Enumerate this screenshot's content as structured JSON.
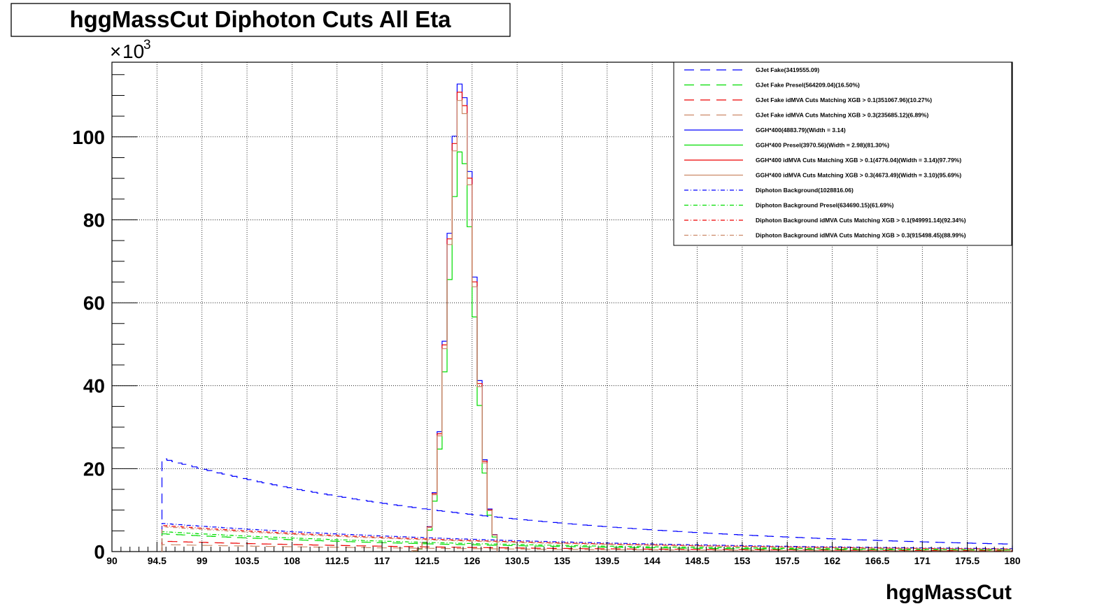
{
  "title": "hggMassCut Diphoton Cuts All Eta",
  "colors": {
    "blue": "#0000ff",
    "green": "#00dd00",
    "red": "#ee0000",
    "tan": "#cc8866",
    "grid": "#000000"
  },
  "chart_data": {
    "type": "line",
    "title": "hggMassCut Diphoton Cuts All Eta",
    "xlabel": "hggMassCut",
    "ylabel": "",
    "y_multiplier": "10",
    "y_multiplier_exp": "3",
    "xlim": [
      90,
      180
    ],
    "ylim": [
      0,
      118
    ],
    "grid": true,
    "legend_position": "top-right",
    "x_ticks": [
      "90",
      "94.5",
      "99",
      "103.5",
      "108",
      "112.5",
      "117",
      "121.5",
      "126",
      "130.5",
      "135",
      "139.5",
      "144",
      "148.5",
      "153",
      "157.5",
      "162",
      "166.5",
      "171",
      "175.5",
      "180"
    ],
    "y_ticks": [
      "0",
      "20",
      "40",
      "60",
      "80",
      "100"
    ],
    "series": [
      {
        "name": "GJet Fake(3419555.09)",
        "color": "blue",
        "dash": "long",
        "kind": "falling",
        "x_range": [
          95,
          180
        ],
        "y_start": 22.5,
        "y_end": 1.8
      },
      {
        "name": "GJet Fake Presel(564209.04)(16.50%)",
        "color": "green",
        "dash": "long",
        "kind": "falling",
        "x_range": [
          95,
          180
        ],
        "y_start": 4.3,
        "y_end": 0.3
      },
      {
        "name": "GJet Fake idMVA Cuts Matching XGB > 0.1(351067.96)(10.27%)",
        "color": "red",
        "dash": "long",
        "kind": "falling",
        "x_range": [
          95,
          180
        ],
        "y_start": 2.5,
        "y_end": 0.2
      },
      {
        "name": "GJet Fake idMVA Cuts Matching XGB > 0.3(235685.12)(6.89%)",
        "color": "tan",
        "dash": "long",
        "kind": "falling",
        "x_range": [
          95,
          180
        ],
        "y_start": 1.7,
        "y_end": 0.15
      },
      {
        "name": "GGH*400(4883.79)(Width = 3.14)",
        "color": "blue",
        "dash": "solid",
        "kind": "peak",
        "x_range": [
          120,
          128.5
        ],
        "peak_x": 124.9,
        "peak_y": 113.5
      },
      {
        "name": "GGH*400 Presel(3970.56)(Width = 2.98)(81.30%)",
        "color": "green",
        "dash": "solid",
        "kind": "peak",
        "x_range": [
          120,
          128.5
        ],
        "peak_x": 124.9,
        "peak_y": 97.0
      },
      {
        "name": "GGH*400 idMVA Cuts Matching XGB > 0.1(4776.04)(Width = 3.14)(97.79%)",
        "color": "red",
        "dash": "solid",
        "kind": "peak",
        "x_range": [
          120,
          128.5
        ],
        "peak_x": 124.9,
        "peak_y": 111.5
      },
      {
        "name": "GGH*400 idMVA Cuts Matching XGB > 0.3(4673.49)(Width = 3.10)(95.69%)",
        "color": "tan",
        "dash": "solid",
        "kind": "peak",
        "x_range": [
          120,
          128.5
        ],
        "peak_x": 124.9,
        "peak_y": 109.5
      },
      {
        "name": "Diphoton Background(1028816.06)",
        "color": "blue",
        "dash": "dashdot",
        "kind": "falling",
        "x_range": [
          95,
          180
        ],
        "y_start": 6.8,
        "y_end": 0.7
      },
      {
        "name": "Diphoton Background Presel(634690.15)(61.69%)",
        "color": "green",
        "dash": "dashdot",
        "kind": "falling",
        "x_range": [
          95,
          180
        ],
        "y_start": 4.8,
        "y_end": 0.4
      },
      {
        "name": "Diphoton Background idMVA Cuts Matching XGB > 0.1(949991.14)(92.34%)",
        "color": "red",
        "dash": "dashdot",
        "kind": "falling",
        "x_range": [
          95,
          180
        ],
        "y_start": 6.3,
        "y_end": 0.6
      },
      {
        "name": "Diphoton Background idMVA Cuts Matching XGB > 0.3(915498.45)(88.99%)",
        "color": "tan",
        "dash": "dashdot",
        "kind": "falling",
        "x_range": [
          95,
          180
        ],
        "y_start": 6.0,
        "y_end": 0.55
      }
    ]
  }
}
